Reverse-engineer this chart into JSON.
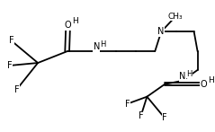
{
  "bg_color": "#ffffff",
  "line_color": "#000000",
  "text_color": "#000000",
  "figsize": [
    2.39,
    1.47
  ],
  "dpi": 100,
  "xlim": [
    0,
    10
  ],
  "ylim": [
    0,
    10
  ],
  "lw": 1.3,
  "fs": 7.0
}
